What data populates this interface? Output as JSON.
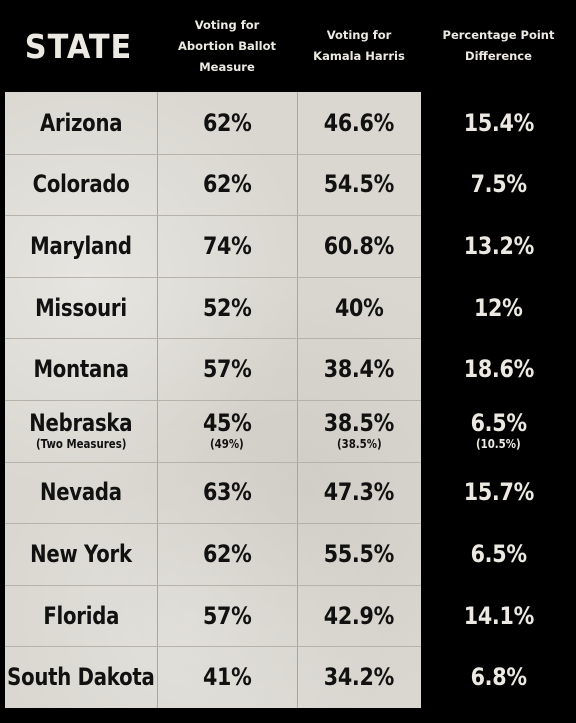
{
  "chart_data": {
    "type": "table",
    "columns": [
      "STATE",
      "Voting for\nAbortion Ballot Measure",
      "Voting for\nKamala Harris",
      "Percentage Point\nDifference"
    ],
    "rows": [
      {
        "state": "Arizona",
        "state_note": "",
        "abortion": "62%",
        "abortion_note": "",
        "harris": "46.6%",
        "harris_note": "",
        "difference": "15.4%",
        "difference_note": ""
      },
      {
        "state": "Colorado",
        "state_note": "",
        "abortion": "62%",
        "abortion_note": "",
        "harris": "54.5%",
        "harris_note": "",
        "difference": "7.5%",
        "difference_note": ""
      },
      {
        "state": "Maryland",
        "state_note": "",
        "abortion": "74%",
        "abortion_note": "",
        "harris": "60.8%",
        "harris_note": "",
        "difference": "13.2%",
        "difference_note": ""
      },
      {
        "state": "Missouri",
        "state_note": "",
        "abortion": "52%",
        "abortion_note": "",
        "harris": "40%",
        "harris_note": "",
        "difference": "12%",
        "difference_note": ""
      },
      {
        "state": "Montana",
        "state_note": "",
        "abortion": "57%",
        "abortion_note": "",
        "harris": "38.4%",
        "harris_note": "",
        "difference": "18.6%",
        "difference_note": ""
      },
      {
        "state": "Nebraska",
        "state_note": "(Two Measures)",
        "abortion": "45%",
        "abortion_note": "(49%)",
        "harris": "38.5%",
        "harris_note": "(38.5%)",
        "difference": "6.5%",
        "difference_note": "(10.5%)"
      },
      {
        "state": "Nevada",
        "state_note": "",
        "abortion": "63%",
        "abortion_note": "",
        "harris": "47.3%",
        "harris_note": "",
        "difference": "15.7%",
        "difference_note": ""
      },
      {
        "state": "New York",
        "state_note": "",
        "abortion": "62%",
        "abortion_note": "",
        "harris": "55.5%",
        "harris_note": "",
        "difference": "6.5%",
        "difference_note": ""
      },
      {
        "state": "Florida",
        "state_note": "",
        "abortion": "57%",
        "abortion_note": "",
        "harris": "42.9%",
        "harris_note": "",
        "difference": "14.1%",
        "difference_note": ""
      },
      {
        "state": "South Dakota",
        "state_note": "",
        "abortion": "41%",
        "abortion_note": "",
        "harris": "34.2%",
        "harris_note": "",
        "difference": "6.8%",
        "difference_note": ""
      }
    ]
  },
  "colors": {
    "background": "#000000",
    "panel": "#d9d7d0",
    "dark_text": "#111111",
    "light_text": "#ece9e2",
    "grid_line": "#b5b2aa"
  }
}
